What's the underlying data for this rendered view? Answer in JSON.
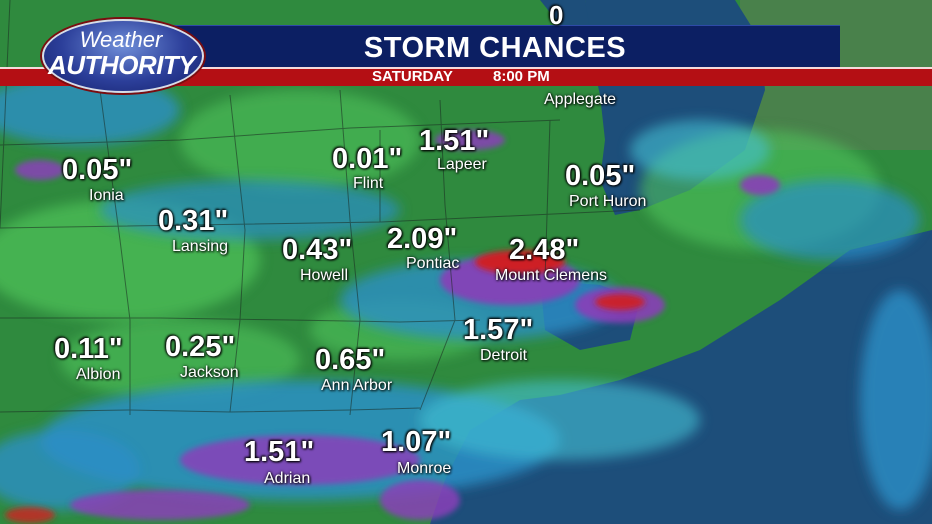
{
  "header": {
    "logo_top": "Weather",
    "logo_bottom": "AUTHORITY",
    "title": "STORM CHANCES",
    "day": "SATURDAY",
    "time": "8:00 PM"
  },
  "colors": {
    "header_navy": "#0c1f63",
    "header_red": "#b40f14",
    "land_green": "#2f8a3e",
    "rain_blue": "#2a8fc7",
    "rain_cyan": "#44c2d6",
    "rain_purple": "#8a3fb8",
    "rain_red": "#d21f1f",
    "water": "#1d4e7a"
  },
  "partial_label": "0",
  "locations": [
    {
      "id": "applegate",
      "city": "Applegate",
      "value": ""
    },
    {
      "id": "ionia",
      "city": "Ionia",
      "value": "0.05\""
    },
    {
      "id": "flint",
      "city": "Flint",
      "value": "0.01\""
    },
    {
      "id": "lapeer",
      "city": "Lapeer",
      "value": "1.51\""
    },
    {
      "id": "port-huron",
      "city": "Port Huron",
      "value": "0.05\""
    },
    {
      "id": "lansing",
      "city": "Lansing",
      "value": "0.31\""
    },
    {
      "id": "howell",
      "city": "Howell",
      "value": "0.43\""
    },
    {
      "id": "pontiac",
      "city": "Pontiac",
      "value": "2.09\""
    },
    {
      "id": "mount-clemens",
      "city": "Mount Clemens",
      "value": "2.48\""
    },
    {
      "id": "albion",
      "city": "Albion",
      "value": "0.11\""
    },
    {
      "id": "jackson",
      "city": "Jackson",
      "value": "0.25\""
    },
    {
      "id": "ann-arbor",
      "city": "Ann Arbor",
      "value": "0.65\""
    },
    {
      "id": "detroit",
      "city": "Detroit",
      "value": "1.57\""
    },
    {
      "id": "adrian",
      "city": "Adrian",
      "value": "1.51\""
    },
    {
      "id": "monroe",
      "city": "Monroe",
      "value": "1.07\""
    }
  ]
}
